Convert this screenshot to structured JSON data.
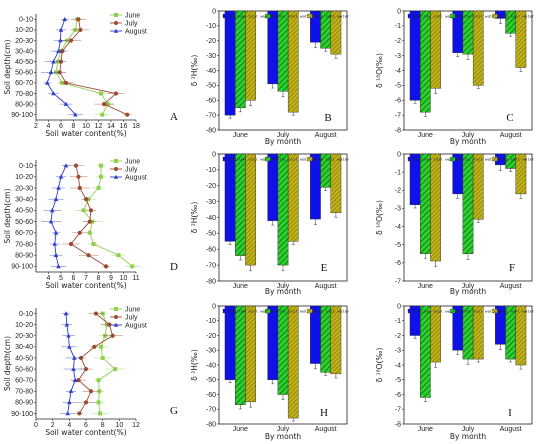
{
  "colors": {
    "june": "#8fd14f",
    "july": "#9c4a32",
    "august": "#2f3fc8",
    "shallow": "#1010e8",
    "middle": "#2fcf2f",
    "deep": "#c2b51a"
  },
  "chart_data": [
    {
      "type": "line",
      "panel": "A",
      "orientation": "depth-profile",
      "xlabel": "Soil water content(%)",
      "ylabel": "Soil depth(cm)",
      "xlim": [
        2,
        18
      ],
      "xticks": [
        "2",
        "4",
        "6",
        "8",
        "10",
        "12",
        "14",
        "16",
        "18"
      ],
      "depths": [
        "0-10",
        "10-20",
        "20-30",
        "30-40",
        "40-50",
        "50-60",
        "60-70",
        "70-80",
        "80-90",
        "90-100"
      ],
      "legend": [
        "June",
        "July",
        "August"
      ],
      "series": [
        {
          "name": "June",
          "values": [
            8.6,
            8.3,
            7.0,
            6.0,
            5.5,
            5.2,
            6.2,
            12.4,
            13.5,
            12.6
          ]
        },
        {
          "name": "July",
          "values": [
            8.8,
            9.1,
            7.6,
            6.2,
            6.0,
            5.8,
            6.8,
            14.8,
            12.9,
            16.6
          ]
        },
        {
          "name": "August",
          "values": [
            6.6,
            6.0,
            5.9,
            5.6,
            4.8,
            4.4,
            3.8,
            4.8,
            6.8,
            8.3
          ]
        }
      ]
    },
    {
      "type": "bar",
      "panel": "B",
      "ylabel": "δ ²H(‰)",
      "xlabel": "By month",
      "categories": [
        "June",
        "July",
        "August"
      ],
      "legend": [
        "Shallow soil water",
        "Middle soil water",
        "Deep soil water"
      ],
      "ylim": [
        0,
        -80
      ],
      "yticks": [
        "0",
        "-10",
        "-20",
        "-30",
        "-40",
        "-50",
        "-60",
        "-70",
        "-80"
      ],
      "series": [
        {
          "name": "Shallow soil water",
          "values": [
            -70,
            -49,
            -21
          ]
        },
        {
          "name": "Middle soil water",
          "values": [
            -65,
            -54,
            -25
          ]
        },
        {
          "name": "Deep soil water",
          "values": [
            -60,
            -68,
            -29
          ]
        }
      ]
    },
    {
      "type": "bar",
      "panel": "C",
      "ylabel": "δ ¹⁸O(‰)",
      "xlabel": "By month",
      "categories": [
        "June",
        "July",
        "August"
      ],
      "legend": [
        "Shallow soil water",
        "Middle soil water",
        "Deep soil water"
      ],
      "ylim": [
        0,
        -8
      ],
      "yticks": [
        "0",
        "-1",
        "-2",
        "-3",
        "-4",
        "-5",
        "-6",
        "-7",
        "-8"
      ],
      "series": [
        {
          "name": "Shallow soil water",
          "values": [
            -6.0,
            -2.8,
            -0.5
          ]
        },
        {
          "name": "Middle soil water",
          "values": [
            -6.8,
            -2.9,
            -1.5
          ]
        },
        {
          "name": "Deep soil water",
          "values": [
            -5.2,
            -5.0,
            -3.8
          ]
        }
      ]
    },
    {
      "type": "line",
      "panel": "D",
      "orientation": "depth-profile",
      "xlabel": "Soil water content(%)",
      "ylabel": "Soil depth(cm)",
      "xlim": [
        3,
        11
      ],
      "xticks": [
        "4",
        "5",
        "6",
        "7",
        "8",
        "9",
        "10",
        "11"
      ],
      "depths": [
        "0-10",
        "10-20",
        "20-30",
        "30-40",
        "40-50",
        "50-60",
        "60-70",
        "70-80",
        "80-90",
        "90-100"
      ],
      "legend": [
        "June",
        "July",
        "August"
      ],
      "series": [
        {
          "name": "June",
          "values": [
            8.2,
            8.2,
            8.0,
            7.2,
            6.8,
            7.5,
            7.3,
            7.6,
            9.6,
            10.7
          ]
        },
        {
          "name": "July",
          "values": [
            6.2,
            6.4,
            6.5,
            7.0,
            7.4,
            7.3,
            6.5,
            5.8,
            7.2,
            8.6
          ]
        },
        {
          "name": "August",
          "values": [
            5.4,
            5.0,
            4.8,
            4.6,
            4.3,
            4.2,
            4.6,
            4.5,
            4.6,
            4.8
          ]
        }
      ]
    },
    {
      "type": "bar",
      "panel": "E",
      "ylabel": "δ ²H(‰)",
      "xlabel": "By month",
      "categories": [
        "June",
        "July",
        "August"
      ],
      "legend": [
        "Shallow soil water",
        "Middle soil water",
        "Deep soil water"
      ],
      "ylim": [
        0,
        -80
      ],
      "yticks": [
        "0",
        "-10",
        "-20",
        "-30",
        "-40",
        "-50",
        "-60",
        "-70",
        "-80"
      ],
      "series": [
        {
          "name": "Shallow soil water",
          "values": [
            -55,
            -42,
            -41
          ]
        },
        {
          "name": "Middle soil water",
          "values": [
            -64,
            -70,
            -21
          ]
        },
        {
          "name": "Deep soil water",
          "values": [
            -70,
            -55,
            -37
          ]
        }
      ]
    },
    {
      "type": "bar",
      "panel": "F",
      "ylabel": "δ ¹⁸O(‰)",
      "xlabel": "By month",
      "categories": [
        "June",
        "July",
        "August"
      ],
      "legend": [
        "Shallow soil water",
        "Middle soil water",
        "Deep soil water"
      ],
      "ylim": [
        0,
        -7
      ],
      "yticks": [
        "0",
        "-1",
        "-2",
        "-3",
        "-4",
        "-5",
        "-6",
        "-7"
      ],
      "series": [
        {
          "name": "Shallow soil water",
          "values": [
            -2.8,
            -2.2,
            -0.6
          ]
        },
        {
          "name": "Middle soil water",
          "values": [
            -5.5,
            -5.5,
            -0.8
          ]
        },
        {
          "name": "Deep soil water",
          "values": [
            -5.9,
            -3.6,
            -2.2
          ]
        }
      ]
    },
    {
      "type": "line",
      "panel": "G",
      "orientation": "depth-profile",
      "xlabel": "Soil water content(%)",
      "ylabel": "Soil depth(cm)",
      "xlim": [
        0,
        12
      ],
      "xticks": [
        "0",
        "2",
        "4",
        "6",
        "8",
        "10",
        "12"
      ],
      "depths": [
        "0-10",
        "10-20",
        "20-30",
        "30-40",
        "40-50",
        "50-60",
        "60-70",
        "70-80",
        "80-90",
        "90-100"
      ],
      "legend": [
        "June",
        "July",
        "August"
      ],
      "series": [
        {
          "name": "June",
          "values": [
            8.0,
            8.5,
            8.3,
            7.8,
            8.0,
            9.5,
            7.5,
            7.6,
            7.5,
            7.7
          ]
        },
        {
          "name": "July",
          "values": [
            7.2,
            8.8,
            9.2,
            7.0,
            5.4,
            6.0,
            5.1,
            6.6,
            6.0,
            5.2
          ]
        },
        {
          "name": "August",
          "values": [
            3.6,
            3.7,
            3.9,
            4.0,
            4.6,
            4.5,
            4.7,
            4.2,
            4.0,
            3.8
          ]
        }
      ]
    },
    {
      "type": "bar",
      "panel": "H",
      "ylabel": "δ ²H(‰)",
      "xlabel": "By month",
      "categories": [
        "June",
        "July",
        "August"
      ],
      "legend": [
        "Shallow soil water",
        "Middle soil water",
        "Deep soil water"
      ],
      "ylim": [
        0,
        -80
      ],
      "yticks": [
        "0",
        "-10",
        "-20",
        "-30",
        "-40",
        "-50",
        "-60",
        "-70",
        "-80"
      ],
      "series": [
        {
          "name": "Shallow soil water",
          "values": [
            -50,
            -50,
            -39
          ]
        },
        {
          "name": "Middle soil water",
          "values": [
            -67,
            -60,
            -45
          ]
        },
        {
          "name": "Deep soil water",
          "values": [
            -65,
            -76,
            -46
          ]
        }
      ]
    },
    {
      "type": "bar",
      "panel": "I",
      "ylabel": "δ ¹⁸O(‰)",
      "xlabel": "By month",
      "categories": [
        "June",
        "July",
        "August"
      ],
      "legend": [
        "Shallow soil water",
        "Middle soil water",
        "Deep soil water"
      ],
      "ylim": [
        0,
        -8
      ],
      "yticks": [
        "0",
        "-1",
        "-2",
        "-3",
        "-4",
        "-5",
        "-6",
        "-7",
        "-8"
      ],
      "series": [
        {
          "name": "Shallow soil water",
          "values": [
            -2.0,
            -3.0,
            -2.6
          ]
        },
        {
          "name": "Middle soil water",
          "values": [
            -6.2,
            -3.6,
            -3.6
          ]
        },
        {
          "name": "Deep soil water",
          "values": [
            -3.8,
            -3.6,
            -4.0
          ]
        }
      ]
    }
  ]
}
